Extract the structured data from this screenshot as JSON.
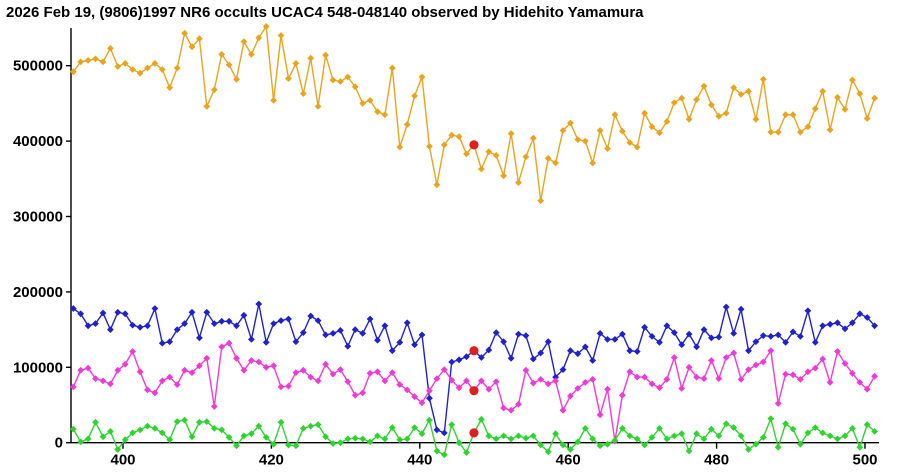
{
  "title": "2026 Feb 19, (9806)1997 NR6 occults UCAC4 548-048140 observed by Hidehito Yamamura",
  "chart_data": {
    "type": "line",
    "title": "2026 Feb 19, (9806)1997 NR6 occults UCAC4 548-048140 observed by Hidehito Yamamura",
    "xlabel": "",
    "ylabel": "",
    "grid": false,
    "legend": "none",
    "marker": "diamond",
    "background": "#ffffff",
    "axis_color": "#000000",
    "x_start": 393.3,
    "x_step": 1,
    "x_ticks": [
      400,
      420,
      440,
      460,
      480,
      500
    ],
    "y_ticks": [
      0,
      100000,
      200000,
      300000,
      400000,
      500000
    ],
    "xlim": [
      392,
      503
    ],
    "ylim": [
      -20000,
      560000
    ],
    "series": [
      {
        "name": "target-orange",
        "color": "#E8A41F",
        "values": [
          492000,
          505000,
          507000,
          509000,
          505000,
          523000,
          499000,
          503000,
          495000,
          490000,
          497000,
          503000,
          495000,
          471000,
          497000,
          543000,
          525000,
          536000,
          446000,
          468000,
          515000,
          501000,
          482000,
          532000,
          515000,
          537000,
          552000,
          454000,
          540000,
          483000,
          503000,
          463000,
          510000,
          446000,
          514000,
          481000,
          479000,
          485000,
          472000,
          450000,
          454000,
          439000,
          435000,
          497000,
          392000,
          422000,
          460000,
          485000,
          393000,
          342000,
          395000,
          408000,
          406000,
          383000,
          395000,
          363000,
          386000,
          381000,
          354000,
          410000,
          345000,
          379000,
          404000,
          321000,
          377000,
          371000,
          414000,
          424000,
          402000,
          400000,
          371000,
          414000,
          390000,
          435000,
          413000,
          398000,
          392000,
          437000,
          419000,
          411000,
          426000,
          451000,
          457000,
          429000,
          455000,
          473000,
          448000,
          433000,
          437000,
          471000,
          462000,
          466000,
          429000,
          482000,
          412000,
          412000,
          435000,
          435000,
          412000,
          419000,
          443000,
          466000,
          415000,
          458000,
          442000,
          481000,
          463000,
          430000,
          457000
        ]
      },
      {
        "name": "comparison-blue",
        "color": "#2121CC",
        "values": [
          178000,
          171000,
          155000,
          158000,
          172000,
          150000,
          173000,
          171000,
          156000,
          153000,
          155000,
          178000,
          132000,
          134000,
          150000,
          158000,
          173000,
          139000,
          173000,
          158000,
          161000,
          161000,
          155000,
          169000,
          137000,
          184000,
          133000,
          158000,
          162000,
          164000,
          134000,
          146000,
          168000,
          162000,
          143000,
          145000,
          149000,
          128000,
          150000,
          145000,
          164000,
          136000,
          155000,
          122000,
          133000,
          159000,
          130000,
          143000,
          59000,
          17000,
          13000,
          107000,
          110000,
          114000,
          122000,
          113000,
          123000,
          146000,
          134000,
          112000,
          144000,
          142000,
          111000,
          119000,
          134000,
          87000,
          97000,
          122000,
          118000,
          127000,
          109000,
          145000,
          137000,
          137000,
          144000,
          122000,
          121000,
          153000,
          141000,
          133000,
          155000,
          146000,
          130000,
          144000,
          127000,
          150000,
          139000,
          140000,
          180000,
          145000,
          177000,
          122000,
          134000,
          142000,
          141000,
          143000,
          133000,
          147000,
          141000,
          175000,
          133000,
          155000,
          157000,
          159000,
          151000,
          159000,
          171000,
          166000,
          155000
        ]
      },
      {
        "name": "comparison-magenta",
        "color": "#EE3AD6",
        "values": [
          74000,
          96000,
          99000,
          85000,
          82000,
          78000,
          96000,
          104000,
          121000,
          94000,
          70000,
          66000,
          82000,
          87000,
          77000,
          96000,
          93000,
          102000,
          112000,
          48000,
          127000,
          132000,
          112000,
          96000,
          109000,
          107000,
          100000,
          102000,
          74000,
          75000,
          93000,
          96000,
          87000,
          82000,
          104000,
          91000,
          97000,
          81000,
          63000,
          66000,
          92000,
          94000,
          82000,
          93000,
          77000,
          70000,
          61000,
          53000,
          69000,
          85000,
          97000,
          83000,
          73000,
          82000,
          69000,
          82000,
          71000,
          81000,
          46000,
          43000,
          51000,
          96000,
          79000,
          84000,
          78000,
          82000,
          43000,
          62000,
          72000,
          80000,
          84000,
          37000,
          71000,
          2000,
          63000,
          94000,
          87000,
          87000,
          78000,
          73000,
          84000,
          113000,
          72000,
          100000,
          87000,
          85000,
          109000,
          85000,
          113000,
          119000,
          84000,
          97000,
          103000,
          107000,
          122000,
          52000,
          91000,
          90000,
          84000,
          94000,
          99000,
          111000,
          80000,
          121000,
          105000,
          92000,
          80000,
          71000,
          88000
        ]
      },
      {
        "name": "background-green",
        "color": "#2FD32F",
        "values": [
          18000,
          1000,
          5000,
          27000,
          8000,
          15000,
          -9000,
          4000,
          13000,
          17000,
          22000,
          19000,
          13000,
          4000,
          28000,
          30000,
          8000,
          27000,
          28000,
          19000,
          17000,
          7000,
          -4000,
          9000,
          12000,
          22000,
          7000,
          -2000,
          27000,
          -3000,
          -4000,
          19000,
          22000,
          24000,
          8000,
          -1000,
          0,
          5000,
          6000,
          5000,
          1000,
          9000,
          5000,
          20000,
          4000,
          5000,
          20000,
          12000,
          30000,
          -11000,
          -16000,
          24000,
          0,
          -13000,
          13000,
          31000,
          9000,
          5000,
          9000,
          5000,
          9000,
          6000,
          9000,
          -3000,
          -12000,
          12000,
          -3000,
          -9000,
          1000,
          19000,
          5000,
          -4000,
          -2000,
          3000,
          19000,
          9000,
          5000,
          -3000,
          7000,
          19000,
          5000,
          9000,
          12000,
          -11000,
          12000,
          5000,
          18000,
          9000,
          25000,
          20000,
          9000,
          -9000,
          -2000,
          7000,
          32000,
          -6000,
          25000,
          18000,
          -2000,
          13000,
          20000,
          13000,
          9000,
          5000,
          9000,
          19000,
          -6000,
          24000,
          15000
        ]
      }
    ],
    "highlight": {
      "name": "event-marked-points",
      "color": "#DC1F1F",
      "x": 447.3,
      "values": [
        395000,
        122000,
        69000,
        13000
      ]
    }
  }
}
